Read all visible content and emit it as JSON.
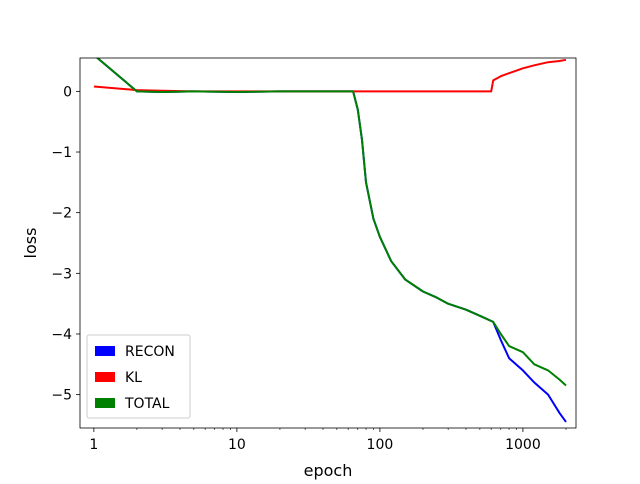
{
  "chart_data": {
    "type": "line",
    "xlabel": "epoch",
    "ylabel": "loss",
    "xscale": "log",
    "xlim": [
      0.8,
      2350
    ],
    "ylim": [
      -5.55,
      0.55
    ],
    "x_ticks": [
      {
        "value": 1,
        "label": "1"
      },
      {
        "value": 10,
        "label": "10"
      },
      {
        "value": 100,
        "label": "100"
      },
      {
        "value": 1000,
        "label": "1000"
      }
    ],
    "y_ticks": [
      {
        "value": 0,
        "label": "0"
      },
      {
        "value": -1,
        "label": "−1"
      },
      {
        "value": -2,
        "label": "−2"
      },
      {
        "value": -3,
        "label": "−3"
      },
      {
        "value": -4,
        "label": "−4"
      },
      {
        "value": -5,
        "label": "−5"
      }
    ],
    "grid": false,
    "legend_position": "lower-left",
    "series": [
      {
        "name": "RECON",
        "color": "#0000ff",
        "x": [
          1,
          2,
          3,
          5,
          10,
          20,
          40,
          65,
          70,
          75,
          80,
          90,
          100,
          120,
          150,
          200,
          250,
          300,
          400,
          500,
          620,
          700,
          800,
          1000,
          1200,
          1500,
          1800,
          2000
        ],
        "y": [
          0.6,
          0.0,
          -0.01,
          0.0,
          -0.01,
          0.0,
          0.0,
          0.0,
          -0.3,
          -0.8,
          -1.5,
          -2.1,
          -2.4,
          -2.8,
          -3.1,
          -3.3,
          -3.4,
          -3.5,
          -3.6,
          -3.7,
          -3.8,
          -4.1,
          -4.4,
          -4.6,
          -4.8,
          -5.0,
          -5.3,
          -5.45
        ]
      },
      {
        "name": "KL",
        "color": "#ff0000",
        "x": [
          1,
          2,
          3,
          5,
          10,
          20,
          40,
          60,
          100,
          200,
          300,
          400,
          500,
          600,
          620,
          700,
          800,
          1000,
          1200,
          1500,
          1800,
          2000
        ],
        "y": [
          0.08,
          0.02,
          0.01,
          0.0,
          0.0,
          0.0,
          0.0,
          0.0,
          0.0,
          0.0,
          0.0,
          0.0,
          0.0,
          0.0,
          0.18,
          0.25,
          0.3,
          0.38,
          0.43,
          0.48,
          0.5,
          0.52
        ]
      },
      {
        "name": "TOTAL",
        "color": "#008000",
        "x": [
          1,
          2,
          3,
          5,
          10,
          20,
          40,
          65,
          70,
          75,
          80,
          90,
          100,
          120,
          150,
          200,
          250,
          300,
          400,
          500,
          620,
          700,
          800,
          1000,
          1200,
          1500,
          1800,
          2000
        ],
        "y": [
          0.6,
          0.0,
          -0.01,
          0.0,
          -0.01,
          0.0,
          0.0,
          0.0,
          -0.3,
          -0.8,
          -1.5,
          -2.1,
          -2.4,
          -2.8,
          -3.1,
          -3.3,
          -3.4,
          -3.5,
          -3.6,
          -3.7,
          -3.8,
          -4.0,
          -4.2,
          -4.3,
          -4.5,
          -4.6,
          -4.75,
          -4.85
        ]
      }
    ]
  }
}
